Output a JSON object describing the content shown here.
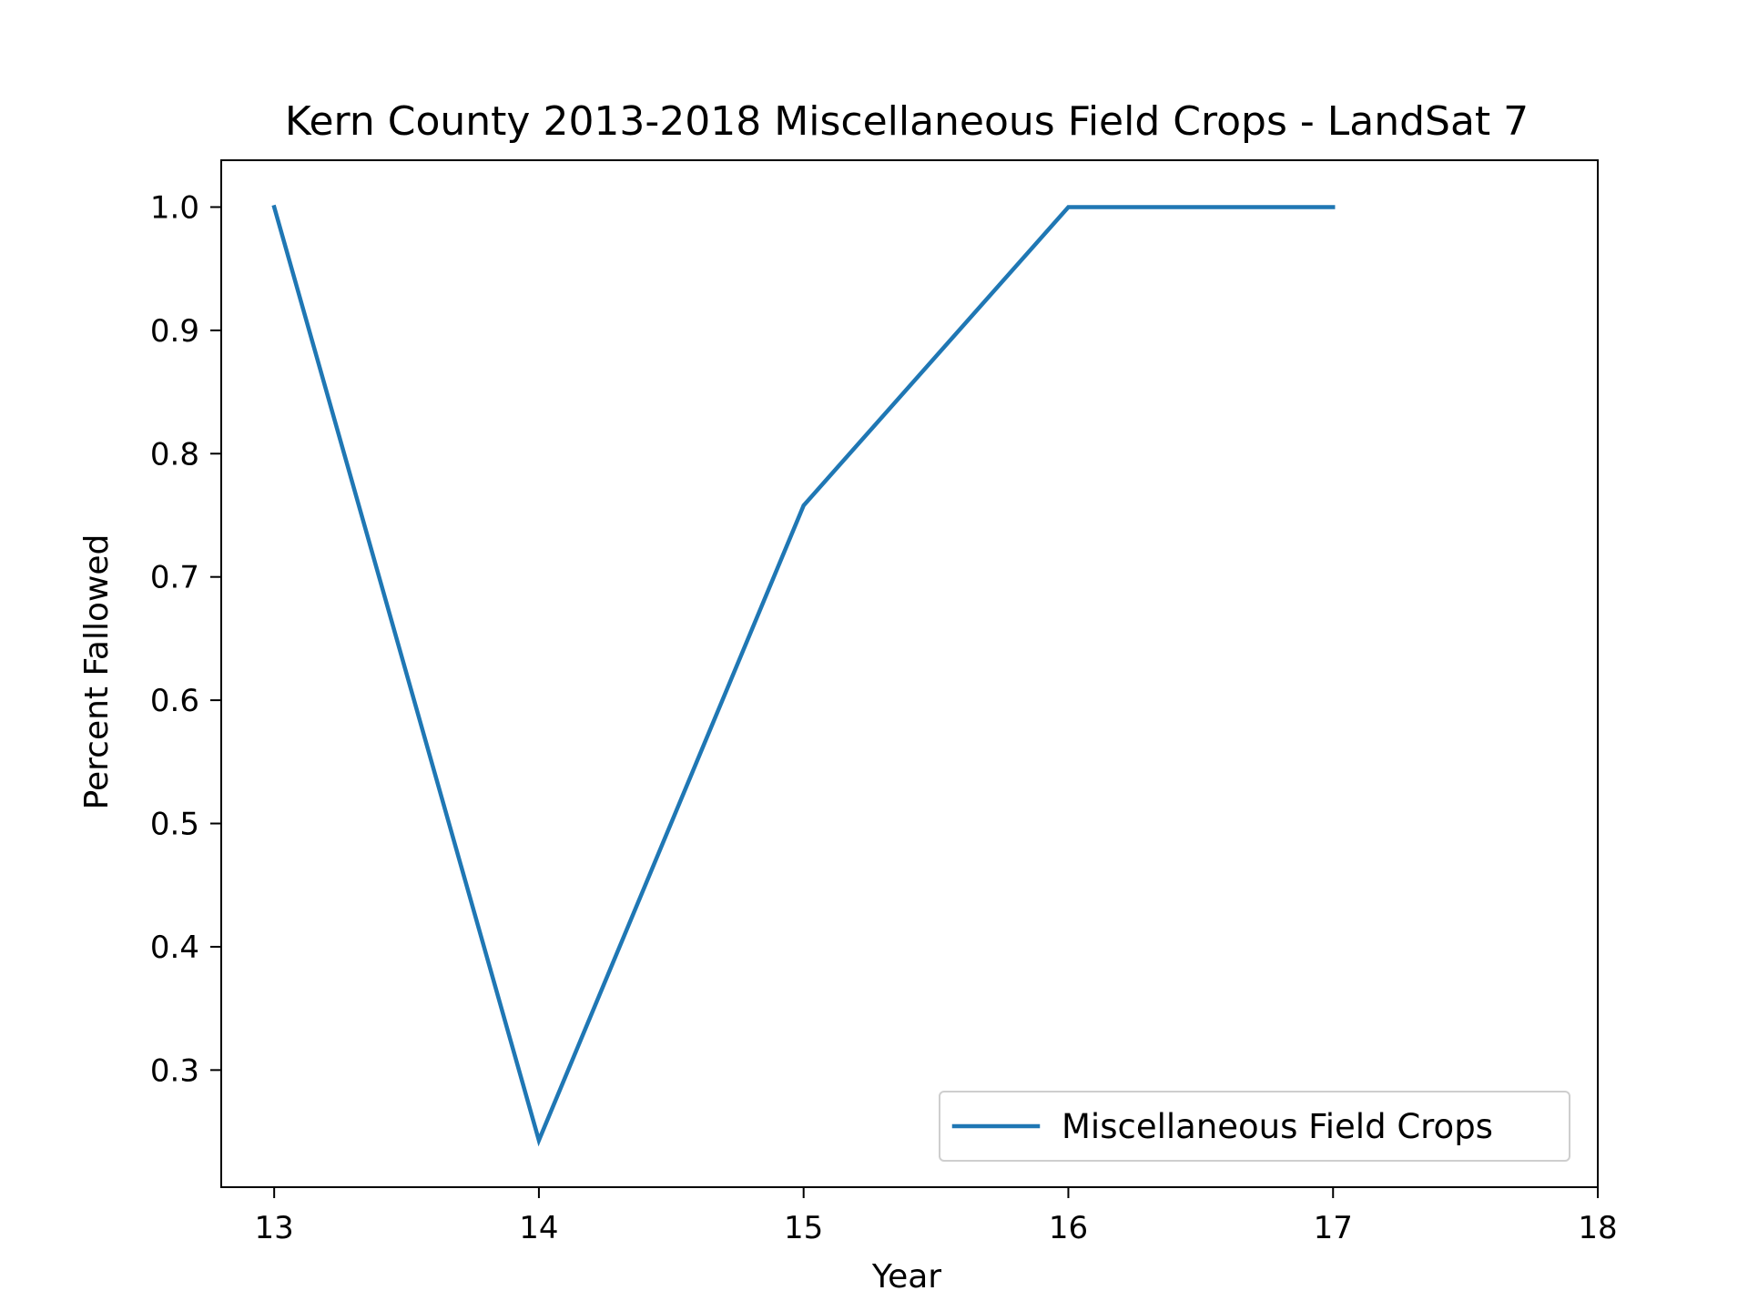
{
  "chart_data": {
    "type": "line",
    "title": "Kern County 2013-2018 Miscellaneous Field Crops - LandSat 7",
    "xlabel": "Year",
    "ylabel": "Percent Fallowed",
    "x": [
      13,
      14,
      15,
      16,
      17
    ],
    "series": [
      {
        "name": "Miscellaneous Field Crops",
        "color": "#1f77b4",
        "values": [
          1.0,
          0.243,
          0.758,
          1.0,
          1.0
        ]
      }
    ],
    "xlim": [
      12.8,
      18
    ],
    "ylim": [
      0.205,
      1.038
    ],
    "xticks": [
      13,
      14,
      15,
      16,
      17,
      18
    ],
    "xtick_labels": [
      "13",
      "14",
      "15",
      "16",
      "17",
      "18"
    ],
    "yticks": [
      0.3,
      0.4,
      0.5,
      0.6,
      0.7,
      0.8,
      0.9,
      1.0
    ],
    "ytick_labels": [
      "0.3",
      "0.4",
      "0.5",
      "0.6",
      "0.7",
      "0.8",
      "0.9",
      "1.0"
    ],
    "grid": false,
    "legend_position": "lower-right"
  }
}
